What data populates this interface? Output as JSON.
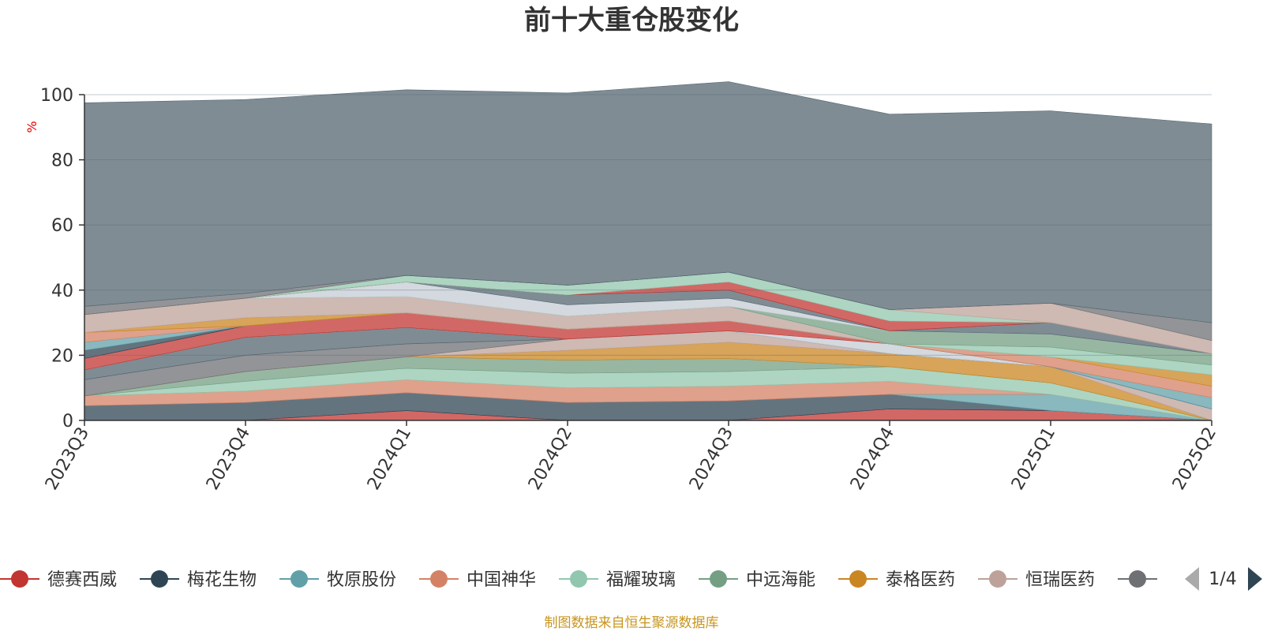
{
  "title": "前十大重仓股变化",
  "y_unit": "%",
  "source_note": "制图数据来自恒生聚源数据库",
  "pager": "1/4",
  "chart_data": {
    "type": "area",
    "stacked": true,
    "categories": [
      "2023Q3",
      "2023Q4",
      "2024Q1",
      "2024Q2",
      "2024Q3",
      "2024Q4",
      "2025Q1",
      "2025Q2"
    ],
    "ylim": [
      0,
      100
    ],
    "yticks": [
      0,
      20,
      40,
      60,
      80,
      100
    ],
    "grid": true,
    "legend_position": "bottom",
    "series": [
      {
        "name": "德赛西威",
        "color": "#c23531",
        "values": [
          0,
          0,
          3,
          0,
          0,
          3.5,
          3,
          0
        ]
      },
      {
        "name": "梅花生物",
        "color": "#2f4554",
        "values": [
          4.5,
          5.5,
          5.5,
          5.5,
          6,
          4.5,
          0,
          0
        ]
      },
      {
        "name": "牧原股份",
        "color": "#61a0a8",
        "values": [
          0,
          0,
          0,
          0,
          0,
          0,
          5,
          0
        ]
      },
      {
        "name": "中国神华",
        "color": "#d48265",
        "values": [
          3,
          3.5,
          4,
          4.5,
          4.5,
          4,
          0,
          0
        ]
      },
      {
        "name": "福耀玻璃",
        "color": "#91c7ae",
        "values": [
          0,
          3,
          3.5,
          4.5,
          4.5,
          4.5,
          3.5,
          0
        ]
      },
      {
        "name": "中远海能",
        "color": "#749f83",
        "values": [
          0,
          3,
          3.5,
          4,
          4,
          0,
          0,
          0
        ]
      },
      {
        "name": "泰格医药",
        "color": "#ca8622",
        "values": [
          0,
          0,
          0,
          3,
          5,
          4,
          5,
          0
        ]
      },
      {
        "name": "恒瑞医药",
        "color": "#bda29a",
        "values": [
          0,
          0,
          0,
          3.5,
          3.5,
          0,
          0,
          3.5
        ]
      },
      {
        "name": "",
        "color": "#6e7074",
        "values": [
          5,
          5,
          4,
          0,
          0,
          0,
          0,
          0
        ]
      },
      {
        "name": "",
        "color": "#546570",
        "values": [
          3,
          5.5,
          5,
          0,
          0,
          0,
          0,
          0
        ]
      },
      {
        "name": "",
        "color": "#c4ccd3",
        "values": [
          0,
          0,
          0,
          0,
          0,
          3,
          0,
          0
        ]
      },
      {
        "name": "",
        "color": "#c23531",
        "values": [
          3.5,
          3.5,
          4.5,
          3,
          3,
          0,
          0,
          0
        ]
      },
      {
        "name": "",
        "color": "#2f4554",
        "values": [
          2.5,
          0,
          0,
          0,
          0,
          0,
          0,
          0
        ]
      },
      {
        "name": "",
        "color": "#61a0a8",
        "values": [
          2.5,
          0,
          0,
          0,
          0,
          0,
          0,
          3.5
        ]
      },
      {
        "name": "",
        "color": "#d48265",
        "values": [
          3,
          0,
          0,
          0,
          0,
          0,
          3,
          3.5
        ]
      },
      {
        "name": "",
        "color": "#ca8622",
        "values": [
          0,
          2.5,
          0,
          0,
          0,
          0,
          0,
          3.5
        ]
      },
      {
        "name": "",
        "color": "#bda29a",
        "values": [
          5.5,
          6,
          5,
          4,
          4.5,
          0,
          0,
          0
        ]
      },
      {
        "name": "",
        "color": "#91c7ae",
        "values": [
          0,
          0,
          0,
          0,
          0,
          0,
          3,
          3
        ]
      },
      {
        "name": "",
        "color": "#749f83",
        "values": [
          0,
          0,
          0,
          0,
          0,
          4,
          4,
          3.5
        ]
      },
      {
        "name": "",
        "color": "#c4ccd3",
        "values": [
          0,
          0,
          4.5,
          3.5,
          2.5,
          0,
          0,
          0
        ]
      },
      {
        "name": "",
        "color": "#546570",
        "values": [
          0,
          0,
          0,
          3,
          2.5,
          0,
          3.5,
          0
        ]
      },
      {
        "name": "",
        "color": "#c23531",
        "values": [
          0,
          0,
          0,
          0,
          2.5,
          3,
          0,
          0
        ]
      },
      {
        "name": "",
        "color": "#91c7ae",
        "values": [
          0,
          0,
          2,
          3,
          3,
          3.5,
          0,
          0
        ]
      },
      {
        "name": "",
        "color": "#bda29a",
        "values": [
          0,
          0,
          0,
          0,
          0,
          0,
          6,
          4
        ]
      },
      {
        "name": "",
        "color": "#6e7074",
        "values": [
          2.5,
          1.5,
          0,
          0,
          0,
          0,
          0,
          5.5
        ]
      },
      {
        "name": "",
        "color": "#546570",
        "values": [
          62.5,
          59.5,
          57,
          59,
          58.5,
          60,
          59,
          61
        ]
      }
    ]
  }
}
